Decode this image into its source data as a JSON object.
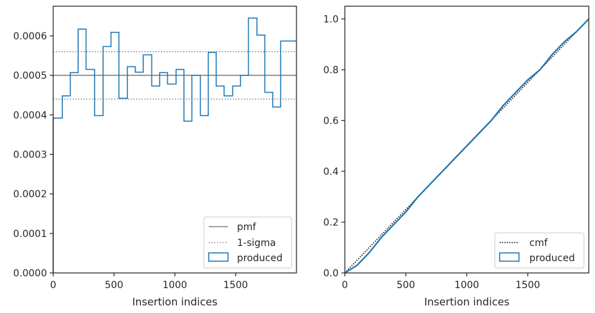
{
  "colors": {
    "series": "#1f77b4",
    "pmf": "#707070",
    "sigma": "#707070",
    "cmf": "#000000",
    "axes": "#262626"
  },
  "chart_data": [
    {
      "type": "line",
      "subtype": "step-histogram",
      "xlabel": "Insertion indices",
      "ylabel": "",
      "xlim": [
        0,
        2000
      ],
      "ylim": [
        0,
        0.000675
      ],
      "xticks": [
        0,
        500,
        1000,
        1500
      ],
      "xtick_labels": [
        "0",
        "500",
        "1000",
        "1500"
      ],
      "yticks": [
        0,
        0.0001,
        0.0002,
        0.0003,
        0.0004,
        0.0005,
        0.0006
      ],
      "ytick_labels": [
        "0.0000",
        "0.0001",
        "0.0002",
        "0.0003",
        "0.0004",
        "0.0005",
        "0.0006"
      ],
      "bin_edges": [
        0,
        75,
        140,
        205,
        270,
        340,
        410,
        475,
        540,
        610,
        675,
        740,
        810,
        875,
        940,
        1010,
        1075,
        1140,
        1210,
        1275,
        1340,
        1405,
        1475,
        1540,
        1605,
        1675,
        1740,
        1805,
        1870,
        1935,
        2000
      ],
      "series": [
        {
          "name": "produced",
          "values": [
            0.000392,
            0.000448,
            0.000507,
            0.000617,
            0.000515,
            0.000398,
            0.000573,
            0.000609,
            0.000442,
            0.000522,
            0.000508,
            0.000552,
            0.000473,
            0.000507,
            0.000478,
            0.000515,
            0.000384,
            0.0005,
            0.000398,
            0.000558,
            0.000473,
            0.000448,
            0.000473,
            0.0005,
            0.000645,
            0.000602,
            0.000457,
            0.00042,
            0.000587,
            0.000587
          ]
        }
      ],
      "reference_lines": [
        {
          "name": "pmf",
          "y": 0.0005,
          "style": "solid"
        },
        {
          "name": "1-sigma",
          "y": [
            0.00044,
            0.00056
          ],
          "style": "dotted"
        }
      ],
      "legend": {
        "position": "lower-right",
        "entries": [
          "pmf",
          "1-sigma",
          "produced"
        ]
      },
      "grid": false
    },
    {
      "type": "line",
      "xlabel": "Insertion indices",
      "ylabel": "",
      "xlim": [
        0,
        2000
      ],
      "ylim": [
        0,
        1.05
      ],
      "xticks": [
        0,
        500,
        1000,
        1500
      ],
      "xtick_labels": [
        "0",
        "500",
        "1000",
        "1500"
      ],
      "yticks": [
        0,
        0.2,
        0.4,
        0.6,
        0.8,
        1.0
      ],
      "ytick_labels": [
        "0.0",
        "0.2",
        "0.4",
        "0.6",
        "0.8",
        "1.0"
      ],
      "series": [
        {
          "name": "cmf",
          "style": "dotted",
          "x": [
            0,
            2000
          ],
          "y": [
            0,
            1.0
          ]
        },
        {
          "name": "produced",
          "style": "step",
          "x": [
            0,
            100,
            200,
            300,
            400,
            500,
            600,
            700,
            800,
            900,
            1000,
            1100,
            1200,
            1300,
            1400,
            1500,
            1600,
            1700,
            1800,
            1900,
            2000
          ],
          "y": [
            0.0,
            0.03,
            0.08,
            0.14,
            0.19,
            0.24,
            0.3,
            0.35,
            0.4,
            0.45,
            0.5,
            0.55,
            0.6,
            0.66,
            0.71,
            0.76,
            0.8,
            0.86,
            0.91,
            0.95,
            1.0
          ]
        }
      ],
      "legend": {
        "position": "lower-right",
        "entries": [
          "cmf",
          "produced"
        ]
      },
      "grid": false
    }
  ]
}
